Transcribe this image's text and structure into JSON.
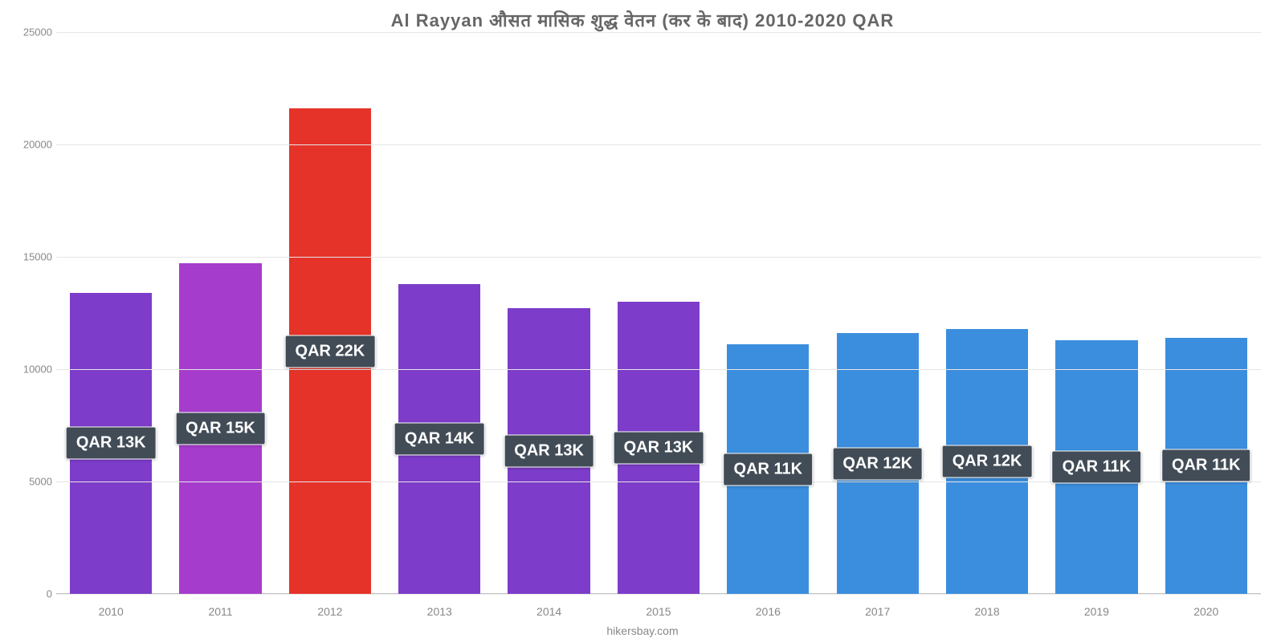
{
  "chart": {
    "type": "bar",
    "title": "Al Rayyan औसत मासिक शुद्ध वेतन (कर के बाद) 2010-2020 QAR",
    "title_fontsize": 22,
    "title_color": "#666666",
    "background_color": "#ffffff",
    "grid_color": "#e6e6e6",
    "axis_label_color": "#888888",
    "axis_label_fontsize": 13,
    "ylim": [
      0,
      25000
    ],
    "yticks": [
      0,
      5000,
      10000,
      15000,
      20000,
      25000
    ],
    "categories": [
      "2010",
      "2011",
      "2012",
      "2013",
      "2014",
      "2015",
      "2016",
      "2017",
      "2018",
      "2019",
      "2020"
    ],
    "values": [
      13400,
      14700,
      21600,
      13800,
      12700,
      13000,
      11100,
      11600,
      11800,
      11300,
      11400
    ],
    "bar_colors": [
      "#7d3cc9",
      "#a63ccc",
      "#e6332a",
      "#7d3cc9",
      "#7d3cc9",
      "#7d3cc9",
      "#3b8ede",
      "#3b8ede",
      "#3b8ede",
      "#3b8ede",
      "#3b8ede"
    ],
    "bar_labels": [
      "QAR 13K",
      "QAR 15K",
      "QAR 22K",
      "QAR 14K",
      "QAR 13K",
      "QAR 13K",
      "QAR 11K",
      "QAR 12K",
      "QAR 12K",
      "QAR 11K",
      "QAR 11K"
    ],
    "bar_label_bg": "#424c57",
    "bar_label_color": "#ffffff",
    "bar_label_fontsize": 20,
    "bar_width": 0.75,
    "attribution": "hikersbay.com"
  }
}
